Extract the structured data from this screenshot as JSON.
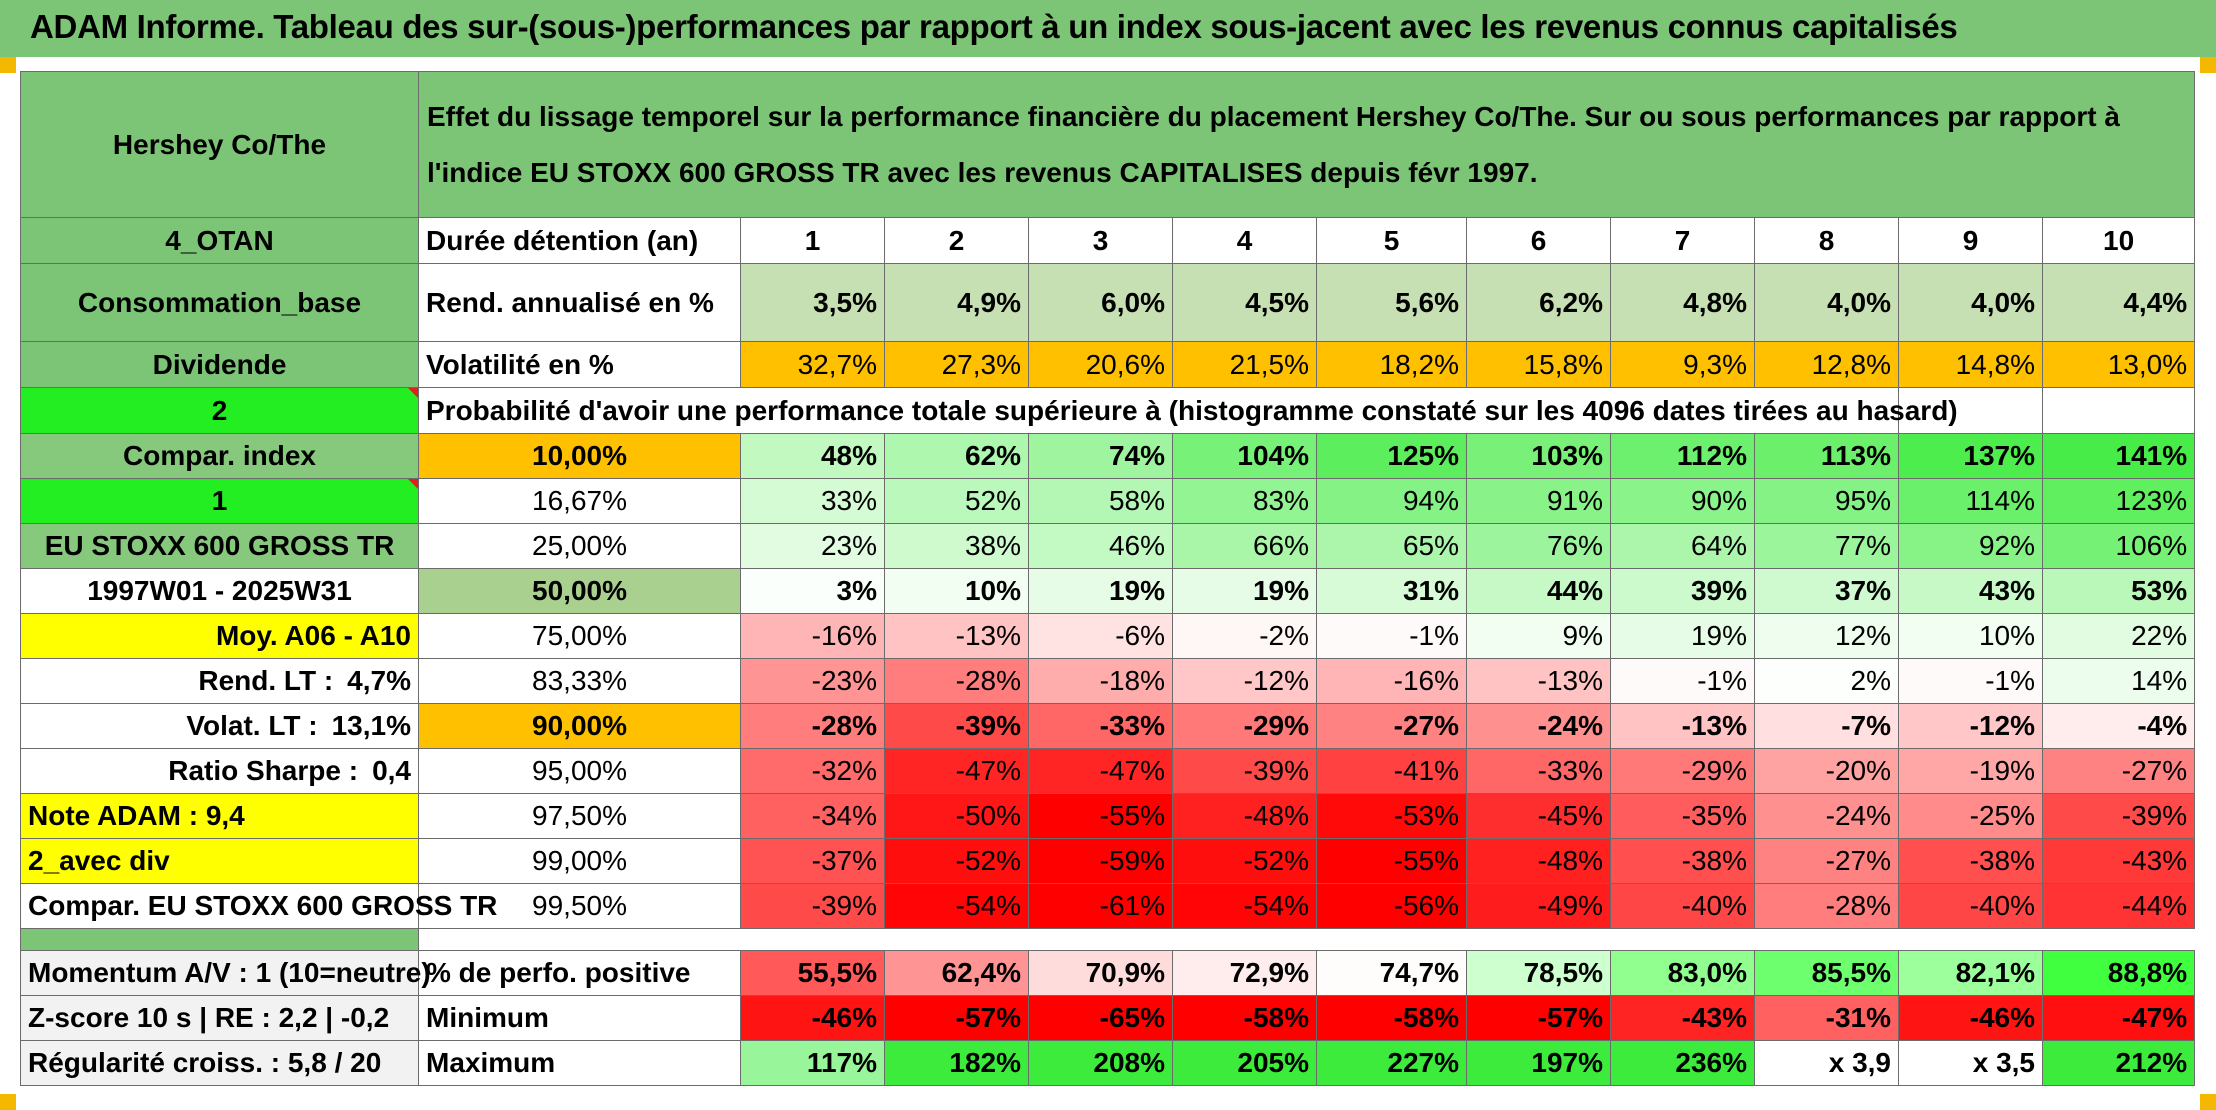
{
  "title": "ADAM Informe. Tableau des sur-(sous-)performances par rapport à un index sous-jacent avec les revenus connus capitalisés",
  "header": {
    "company": "Hershey Co/The",
    "description": "Effet du lissage temporel sur la performance financière du placement Hershey Co/The. Sur ou sous performances par rapport à l'indice EU STOXX 600 GROSS TR avec les revenus CAPITALISES depuis févr 1997."
  },
  "left": {
    "code": "4_OTAN",
    "sector": "Consommation_base",
    "type": "Dividende",
    "n1": "2",
    "compar_index": "Compar. index",
    "n2": "1",
    "index_name": "EU STOXX 600 GROSS TR",
    "period": "1997W01 - 2025W31",
    "moy": "Moy. A06 - A10",
    "rend_lt_label": "Rend. LT :",
    "rend_lt": "4,7%",
    "volat_lt_label": "Volat. LT :",
    "volat_lt": "13,1%",
    "sharpe_label": "Ratio Sharpe :",
    "sharpe": "0,4",
    "note": "Note ADAM : 9,4",
    "avec_div": "2_avec div",
    "compar": "Compar. EU STOXX 600 GROSS TR",
    "momentum": "Momentum A/V : 1 (10=neutre)",
    "zscore": "Z-score 10 s | RE : 2,2 | -0,2",
    "regularite": "Régularité croiss. : 5,8 / 20"
  },
  "labels": {
    "duree": "Durée détention (an)",
    "rend": "Rend. annualisé en %",
    "vol": "Volatilité en %",
    "proba": "Probabilité d'avoir une performance totale supérieure à (histogramme constaté sur les 4096 dates tirées au hasard)",
    "pos": "% de perfo. positive",
    "min": "Minimum",
    "max": "Maximum"
  },
  "years": [
    "1",
    "2",
    "3",
    "4",
    "5",
    "6",
    "7",
    "8",
    "9",
    "10"
  ],
  "rend": [
    "3,5%",
    "4,9%",
    "6,0%",
    "4,5%",
    "5,6%",
    "6,2%",
    "4,8%",
    "4,0%",
    "4,0%",
    "4,4%"
  ],
  "vol": [
    "32,7%",
    "27,3%",
    "20,6%",
    "21,5%",
    "18,2%",
    "15,8%",
    "9,3%",
    "12,8%",
    "14,8%",
    "13,0%"
  ],
  "quantiles": [
    {
      "p": "10,00%",
      "v": [
        "48%",
        "62%",
        "74%",
        "104%",
        "125%",
        "103%",
        "112%",
        "113%",
        "137%",
        "141%"
      ]
    },
    {
      "p": "16,67%",
      "v": [
        "33%",
        "52%",
        "58%",
        "83%",
        "94%",
        "91%",
        "90%",
        "95%",
        "114%",
        "123%"
      ]
    },
    {
      "p": "25,00%",
      "v": [
        "23%",
        "38%",
        "46%",
        "66%",
        "65%",
        "76%",
        "64%",
        "77%",
        "92%",
        "106%"
      ]
    },
    {
      "p": "50,00%",
      "v": [
        "3%",
        "10%",
        "19%",
        "19%",
        "31%",
        "44%",
        "39%",
        "37%",
        "43%",
        "53%"
      ]
    },
    {
      "p": "75,00%",
      "v": [
        "-16%",
        "-13%",
        "-6%",
        "-2%",
        "-1%",
        "9%",
        "19%",
        "12%",
        "10%",
        "22%"
      ]
    },
    {
      "p": "83,33%",
      "v": [
        "-23%",
        "-28%",
        "-18%",
        "-12%",
        "-16%",
        "-13%",
        "-1%",
        "2%",
        "-1%",
        "14%"
      ]
    },
    {
      "p": "90,00%",
      "v": [
        "-28%",
        "-39%",
        "-33%",
        "-29%",
        "-27%",
        "-24%",
        "-13%",
        "-7%",
        "-12%",
        "-4%"
      ]
    },
    {
      "p": "95,00%",
      "v": [
        "-32%",
        "-47%",
        "-47%",
        "-39%",
        "-41%",
        "-33%",
        "-29%",
        "-20%",
        "-19%",
        "-27%"
      ]
    },
    {
      "p": "97,50%",
      "v": [
        "-34%",
        "-50%",
        "-55%",
        "-48%",
        "-53%",
        "-45%",
        "-35%",
        "-24%",
        "-25%",
        "-39%"
      ]
    },
    {
      "p": "99,00%",
      "v": [
        "-37%",
        "-52%",
        "-59%",
        "-52%",
        "-55%",
        "-48%",
        "-38%",
        "-27%",
        "-38%",
        "-43%"
      ]
    },
    {
      "p": "99,50%",
      "v": [
        "-39%",
        "-54%",
        "-61%",
        "-54%",
        "-56%",
        "-49%",
        "-40%",
        "-28%",
        "-40%",
        "-44%"
      ]
    }
  ],
  "positive": [
    "55,5%",
    "62,4%",
    "70,9%",
    "72,9%",
    "74,7%",
    "78,5%",
    "83,0%",
    "85,5%",
    "82,1%",
    "88,8%"
  ],
  "minimum": [
    "-46%",
    "-57%",
    "-65%",
    "-58%",
    "-58%",
    "-57%",
    "-43%",
    "-31%",
    "-46%",
    "-47%"
  ],
  "maximum": [
    "117%",
    "182%",
    "208%",
    "205%",
    "227%",
    "197%",
    "236%",
    "x 3,9",
    "x 3,5",
    "212%"
  ],
  "colors": {
    "header_green": "#7cc576",
    "bright_green": "#22ee22",
    "yellow": "#ffff00",
    "orange": "#ffc000",
    "negative_red": "#ff0000",
    "positive_green": "#33ee33"
  }
}
